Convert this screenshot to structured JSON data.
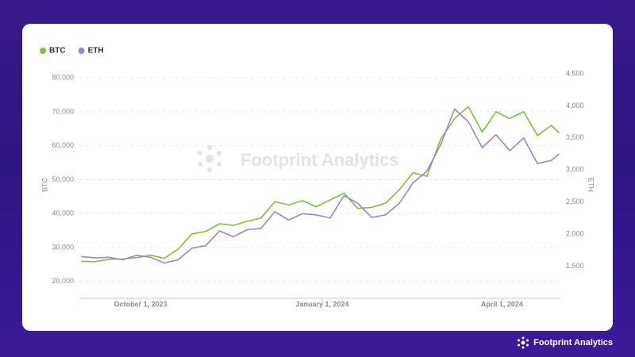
{
  "chart_data": {
    "type": "line",
    "watermark": "Footprint Analytics",
    "brand": "Footprint Analytics",
    "ylabel": "BTC",
    "y2label": "ETH",
    "x": [
      "2023-09-01",
      "2023-09-08",
      "2023-09-15",
      "2023-09-22",
      "2023-09-29",
      "2023-10-06",
      "2023-10-13",
      "2023-10-20",
      "2023-10-27",
      "2023-11-03",
      "2023-11-10",
      "2023-11-17",
      "2023-11-24",
      "2023-12-01",
      "2023-12-08",
      "2023-12-15",
      "2023-12-22",
      "2023-12-29",
      "2024-01-05",
      "2024-01-12",
      "2024-01-19",
      "2024-01-26",
      "2024-02-02",
      "2024-02-09",
      "2024-02-16",
      "2024-02-23",
      "2024-03-01",
      "2024-03-08",
      "2024-03-15",
      "2024-03-22",
      "2024-03-29",
      "2024-04-05",
      "2024-04-12",
      "2024-04-19",
      "2024-04-26",
      "2024-04-30"
    ],
    "series": [
      {
        "name": "BTC",
        "color": "#7dc142",
        "axis": "y",
        "values": [
          25900,
          25800,
          26500,
          26600,
          27000,
          27700,
          26800,
          29500,
          34000,
          34700,
          37000,
          36500,
          37700,
          38700,
          43500,
          42500,
          43800,
          42000,
          44000,
          46000,
          41500,
          41800,
          43000,
          47000,
          52000,
          51000,
          62000,
          68000,
          71500,
          64000,
          70000,
          68000,
          70000,
          63000,
          66000,
          63700
        ]
      },
      {
        "name": "ETH",
        "color": "#9b86c9",
        "axis": "y2",
        "values": [
          1650,
          1630,
          1640,
          1600,
          1670,
          1640,
          1550,
          1600,
          1780,
          1820,
          2050,
          1960,
          2070,
          2090,
          2350,
          2220,
          2320,
          2300,
          2250,
          2600,
          2480,
          2260,
          2300,
          2480,
          2800,
          2980,
          3400,
          3950,
          3750,
          3350,
          3550,
          3300,
          3500,
          3100,
          3150,
          3250
        ]
      }
    ],
    "xlim": [
      "2023-08-31",
      "2024-05-01"
    ],
    "xticks": [
      {
        "value": "2023-10-01",
        "label": "October 1, 2023"
      },
      {
        "value": "2024-01-01",
        "label": "January 1, 2024"
      },
      {
        "value": "2024-04-01",
        "label": "April 1, 2024"
      }
    ],
    "ylim": [
      15000,
      81200
    ],
    "yticks": [
      {
        "value": 20000,
        "label": "20,000"
      },
      {
        "value": 30000,
        "label": "30,000"
      },
      {
        "value": 40000,
        "label": "40,000"
      },
      {
        "value": 50000,
        "label": "50,000"
      },
      {
        "value": 60000,
        "label": "60,000"
      },
      {
        "value": 70000,
        "label": "70,000"
      },
      {
        "value": 80000,
        "label": "80,000"
      }
    ],
    "y2lim": [
      1000,
      4500
    ],
    "y2ticks": [
      {
        "value": 1500,
        "label": "1,500"
      },
      {
        "value": 2000,
        "label": "2,000"
      },
      {
        "value": 2500,
        "label": "2,500"
      },
      {
        "value": 3000,
        "label": "3,000"
      },
      {
        "value": 3500,
        "label": "3,500"
      },
      {
        "value": 4000,
        "label": "4,000"
      },
      {
        "value": 4500,
        "label": "4,500"
      }
    ],
    "grid": true,
    "legend": "top-left"
  }
}
